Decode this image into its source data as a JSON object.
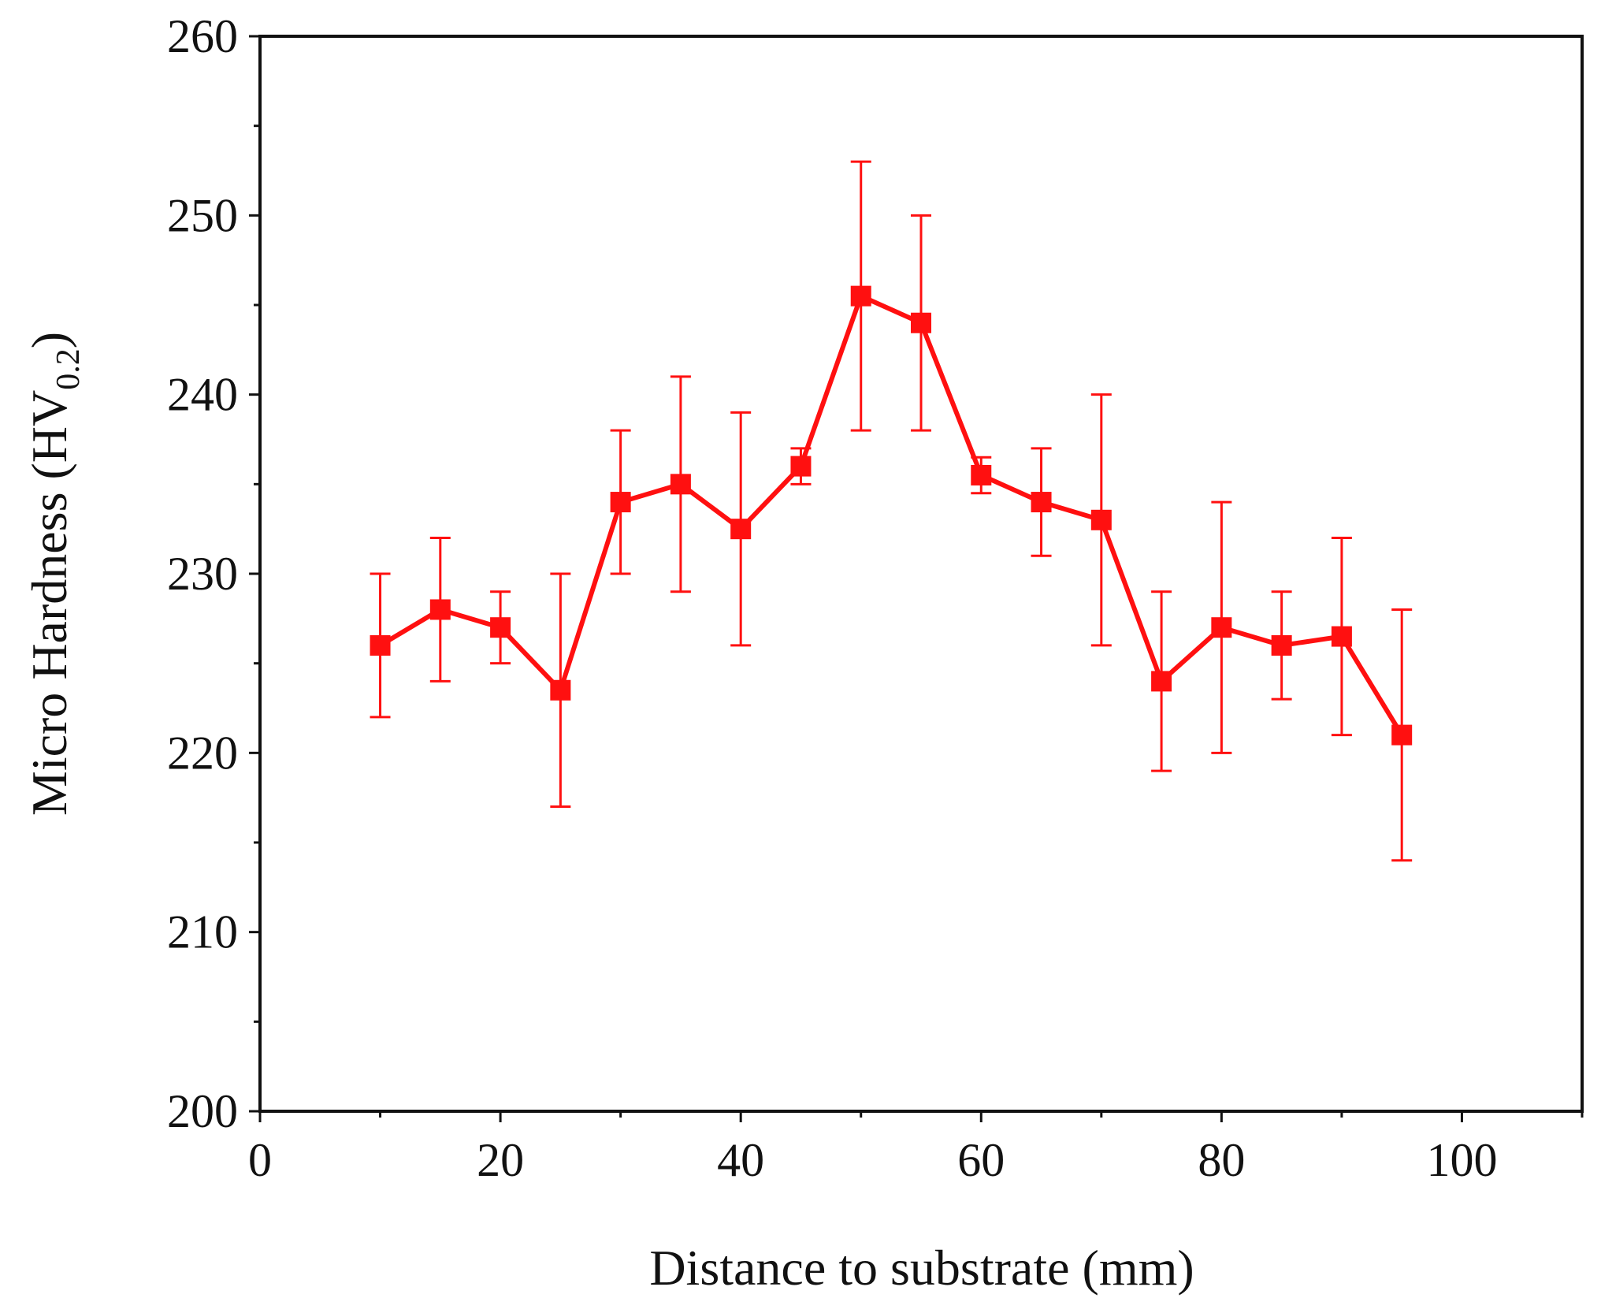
{
  "chart_data": {
    "type": "line",
    "title": "",
    "xlabel": "Distance to substrate (mm)",
    "ylabel": {
      "prefix": "Micro Hardness (HV",
      "subscript": "0.2",
      "suffix": ")"
    },
    "xlim": [
      0,
      110
    ],
    "ylim": [
      200,
      260
    ],
    "xticks": [
      0,
      20,
      40,
      60,
      80,
      100
    ],
    "xtick_labels": [
      "0",
      "20",
      "40",
      "60",
      "80",
      "100"
    ],
    "xminor_step": 10,
    "yticks": [
      200,
      210,
      220,
      230,
      240,
      250,
      260
    ],
    "ytick_labels": [
      "200",
      "210",
      "220",
      "230",
      "240",
      "250",
      "260"
    ],
    "yminor_step": 5,
    "grid": false,
    "series": [
      {
        "name": "Micro Hardness",
        "color": "#ff1010",
        "marker": "square",
        "points": [
          {
            "x": 10,
            "y": 226.0,
            "low": 222.0,
            "high": 230.0
          },
          {
            "x": 15,
            "y": 228.0,
            "low": 224.0,
            "high": 232.0
          },
          {
            "x": 20,
            "y": 227.0,
            "low": 225.0,
            "high": 229.0
          },
          {
            "x": 25,
            "y": 223.5,
            "low": 217.0,
            "high": 230.0
          },
          {
            "x": 30,
            "y": 234.0,
            "low": 230.0,
            "high": 238.0
          },
          {
            "x": 35,
            "y": 235.0,
            "low": 229.0,
            "high": 241.0
          },
          {
            "x": 40,
            "y": 232.5,
            "low": 226.0,
            "high": 239.0
          },
          {
            "x": 45,
            "y": 236.0,
            "low": 235.0,
            "high": 237.0
          },
          {
            "x": 50,
            "y": 245.5,
            "low": 238.0,
            "high": 253.0
          },
          {
            "x": 55,
            "y": 244.0,
            "low": 238.0,
            "high": 250.0
          },
          {
            "x": 60,
            "y": 235.5,
            "low": 234.5,
            "high": 236.5
          },
          {
            "x": 65,
            "y": 234.0,
            "low": 231.0,
            "high": 237.0
          },
          {
            "x": 70,
            "y": 233.0,
            "low": 226.0,
            "high": 240.0
          },
          {
            "x": 75,
            "y": 224.0,
            "low": 219.0,
            "high": 229.0
          },
          {
            "x": 80,
            "y": 227.0,
            "low": 220.0,
            "high": 234.0
          },
          {
            "x": 85,
            "y": 226.0,
            "low": 223.0,
            "high": 229.0
          },
          {
            "x": 90,
            "y": 226.5,
            "low": 221.0,
            "high": 232.0
          },
          {
            "x": 95,
            "y": 221.0,
            "low": 214.0,
            "high": 228.0
          }
        ]
      }
    ]
  }
}
